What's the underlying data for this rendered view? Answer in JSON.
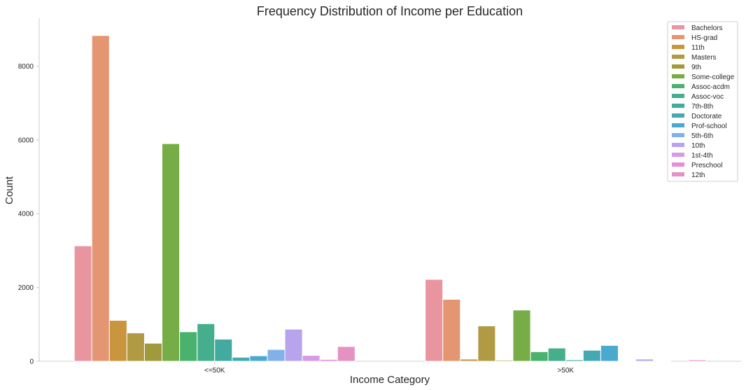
{
  "chart_data": {
    "type": "bar",
    "title": "Frequency Distribution of Income per Education",
    "xlabel": "Income Category",
    "ylabel": "Count",
    "categories": [
      "<=50K",
      ">50K"
    ],
    "ylim": [
      0,
      9300
    ],
    "yticks": [
      0,
      2000,
      4000,
      6000,
      8000
    ],
    "grid": false,
    "legend_position": "top-right",
    "series": [
      {
        "name": "Bachelors",
        "color": "#e8959f",
        "values": [
          3130,
          2220
        ]
      },
      {
        "name": "HS-grad",
        "color": "#e49571",
        "values": [
          8830,
          1680
        ]
      },
      {
        "name": "11th",
        "color": "#c9953e",
        "values": [
          1110,
          60
        ]
      },
      {
        "name": "Masters",
        "color": "#b09b44",
        "values": [
          770,
          960
        ]
      },
      {
        "name": "9th",
        "color": "#a09a3c",
        "values": [
          490,
          30
        ]
      },
      {
        "name": "Some-college",
        "color": "#77ad47",
        "values": [
          5900,
          1390
        ]
      },
      {
        "name": "Assoc-acdm",
        "color": "#49b26c",
        "values": [
          800,
          260
        ]
      },
      {
        "name": "Assoc-voc",
        "color": "#45ae8d",
        "values": [
          1020,
          360
        ]
      },
      {
        "name": "7th-8th",
        "color": "#42aa9f",
        "values": [
          600,
          40
        ]
      },
      {
        "name": "Doctorate",
        "color": "#45a9b3",
        "values": [
          110,
          300
        ]
      },
      {
        "name": "Prof-school",
        "color": "#4aa9cf",
        "values": [
          150,
          430
        ]
      },
      {
        "name": "5th-6th",
        "color": "#81b1e8",
        "values": [
          320,
          10
        ]
      },
      {
        "name": "10th",
        "color": "#b7a4ec",
        "values": [
          870,
          60
        ]
      },
      {
        "name": "1st-4th",
        "color": "#d79ae7",
        "values": [
          160,
          5
        ]
      },
      {
        "name": "Preschool",
        "color": "#e68edc",
        "values": [
          50,
          0
        ]
      },
      {
        "name": "12th",
        "color": "#e592c3",
        "values": [
          400,
          40
        ]
      }
    ]
  }
}
